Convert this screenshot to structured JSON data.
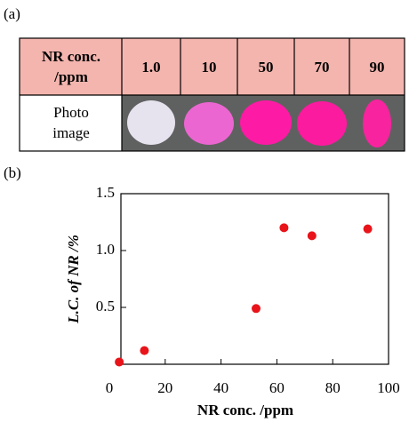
{
  "panel_a": {
    "label": "(a)",
    "table": {
      "header_label": [
        "NR conc.",
        "/ppm"
      ],
      "columns": [
        "1.0",
        "10",
        "50",
        "70",
        "90"
      ],
      "row_label": [
        "Photo",
        "image"
      ]
    }
  },
  "panel_b": {
    "label": "(b)"
  },
  "chart_data": {
    "type": "scatter",
    "xlabel": "NR conc. /ppm",
    "ylabel": "L.C. of  NR /%",
    "x": [
      1,
      10,
      50,
      60,
      70,
      90
    ],
    "values": [
      0.02,
      0.12,
      0.49,
      1.2,
      1.13,
      1.19
    ],
    "color": "#e8141a",
    "xlim": [
      0,
      100
    ],
    "xticks": [
      0,
      20,
      40,
      60,
      80,
      100
    ],
    "ylim": [
      0,
      1.5
    ],
    "yticks": [
      0.5,
      {
        "value": 1,
        "label": "1.0"
      },
      1.5
    ]
  }
}
